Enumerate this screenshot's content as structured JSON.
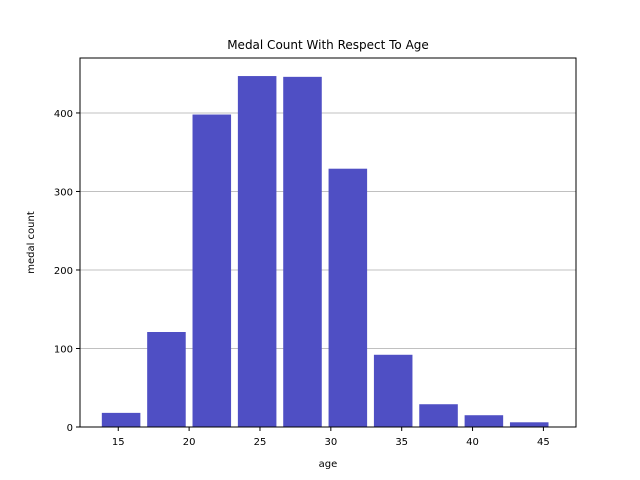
{
  "chart_data": {
    "type": "bar",
    "title": "Medal Count With Respect To Age",
    "xlabel": "age",
    "ylabel": "medal count",
    "x": [
      15.2,
      18.4,
      21.6,
      24.8,
      28.0,
      31.2,
      34.4,
      37.6,
      40.8,
      44.0
    ],
    "values": [
      18,
      121,
      398,
      447,
      446,
      329,
      92,
      29,
      15,
      6
    ],
    "bin_width": 3.2,
    "xlim": [
      12.3,
      47.3
    ],
    "ylim": [
      0,
      470
    ],
    "xticks": [
      15,
      20,
      25,
      30,
      35,
      40,
      45
    ],
    "yticks": [
      0,
      100,
      200,
      300,
      400
    ],
    "grid": "y",
    "bar_color": "#4f4fc4"
  }
}
